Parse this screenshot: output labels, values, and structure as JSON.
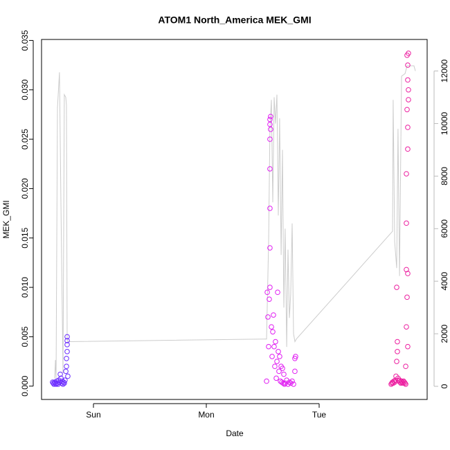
{
  "chart_data": {
    "type": "scatter",
    "title": "ATOM1 North_America MEK_GMI",
    "x_label": "Date",
    "y_label": "MEK_GMI",
    "xlim": [
      0.54,
      3.957
    ],
    "xticks": [
      {
        "value": 1,
        "label": "Sun"
      },
      {
        "value": 2,
        "label": "Mon"
      },
      {
        "value": 3,
        "label": "Tue"
      }
    ],
    "ylim": [
      -0.00135,
      0.0351
    ],
    "yticks": [
      {
        "value": 0,
        "label": "0.000"
      },
      {
        "value": 0.005,
        "label": "0.005"
      },
      {
        "value": 0.01,
        "label": "0.010"
      },
      {
        "value": 0.015,
        "label": "0.015"
      },
      {
        "value": 0.02,
        "label": "0.020"
      },
      {
        "value": 0.025,
        "label": "0.025"
      },
      {
        "value": 0.03,
        "label": "0.030"
      },
      {
        "value": 0.035,
        "label": "0.035"
      }
    ],
    "y2lim": [
      -500,
      13200
    ],
    "y2ticks": [
      0,
      2000,
      4000,
      6000,
      8000,
      10000,
      12000
    ],
    "series": [
      {
        "style": "line",
        "axis": "y2",
        "color": "#cccccc",
        "x": [
          0.656,
          0.663,
          0.669,
          0.681,
          0.699,
          0.712,
          0.73,
          0.742,
          0.755,
          0.761,
          0.767,
          0.773,
          2.534,
          2.552,
          2.564,
          2.577,
          2.589,
          2.601,
          2.613,
          2.626,
          2.638,
          2.65,
          2.663,
          2.675,
          2.687,
          2.699,
          2.712,
          2.724,
          2.736,
          2.748,
          2.761,
          2.773,
          2.785,
          2.798,
          3.65,
          3.656,
          3.669,
          3.687,
          3.699,
          3.712,
          3.73,
          3.761,
          3.779,
          3.804,
          3.84,
          3.853
        ],
        "values": [
          300,
          1000,
          300,
          10600,
          11950,
          7000,
          500,
          11100,
          11000,
          10700,
          1800,
          1700,
          1800,
          5500,
          9800,
          10900,
          7000,
          11000,
          10000,
          11100,
          6500,
          10200,
          5000,
          9000,
          3000,
          6000,
          1500,
          5200,
          2600,
          3500,
          6200,
          2000,
          1700,
          1800,
          5900,
          10900,
          5500,
          4500,
          9800,
          4200,
          11800,
          11900,
          12200,
          12200,
          12200,
          12000
        ]
      },
      {
        "style": "points",
        "color": "#6a2bff",
        "x": [
          0.638,
          0.644,
          0.65,
          0.656,
          0.663,
          0.669,
          0.675,
          0.681,
          0.687,
          0.693,
          0.699,
          0.706,
          0.712,
          0.718,
          0.724,
          0.73,
          0.736,
          0.742,
          0.748,
          0.755,
          0.761,
          0.761,
          0.767,
          0.767,
          0.767,
          0.767,
          0.773
        ],
        "values": [
          0.0004,
          0.0003,
          0.0002,
          0.0004,
          0.0003,
          0.0002,
          0.0005,
          0.0003,
          0.0002,
          0.0006,
          0.0004,
          0.0012,
          0.0008,
          0.0003,
          0.0005,
          0.0002,
          0.0004,
          0.0003,
          0.0006,
          0.0015,
          0.002,
          0.0028,
          0.0035,
          0.0042,
          0.005,
          0.0046,
          0.001
        ]
      },
      {
        "style": "points",
        "color": "#e01cf2",
        "x": [
          2.534,
          2.54,
          2.546,
          2.552,
          2.558,
          2.564,
          2.564,
          2.564,
          2.564,
          2.564,
          2.564,
          2.564,
          2.57,
          2.57,
          2.577,
          2.583,
          2.589,
          2.595,
          2.601,
          2.607,
          2.613,
          2.62,
          2.626,
          2.632,
          2.638,
          2.644,
          2.65,
          2.657,
          2.663,
          2.669,
          2.675,
          2.681,
          2.687,
          2.693,
          2.699,
          2.712,
          2.724,
          2.736,
          2.748,
          2.761,
          2.773,
          2.785,
          2.791,
          2.785
        ],
        "values": [
          0.0005,
          0.0095,
          0.007,
          0.004,
          0.0088,
          0.0265,
          0.027,
          0.025,
          0.022,
          0.018,
          0.014,
          0.01,
          0.0273,
          0.026,
          0.006,
          0.003,
          0.0055,
          0.0072,
          0.004,
          0.002,
          0.0045,
          0.0008,
          0.0025,
          0.0095,
          0.0035,
          0.0015,
          0.003,
          0.0005,
          0.002,
          0.0004,
          0.0018,
          0.0003,
          0.0012,
          0.0002,
          0.0003,
          0.0006,
          0.0002,
          0.0004,
          0.0003,
          0.0005,
          0.0002,
          0.0028,
          0.003,
          0.0015
        ]
      },
      {
        "style": "points",
        "color": "#ec1fa0",
        "x": [
          3.638,
          3.644,
          3.65,
          3.656,
          3.663,
          3.669,
          3.675,
          3.681,
          3.687,
          3.693,
          3.687,
          3.693,
          3.699,
          3.706,
          3.712,
          3.718,
          3.724,
          3.73,
          3.736,
          3.742,
          3.748,
          3.755,
          3.761,
          3.767,
          3.767,
          3.773,
          3.773,
          3.773,
          3.773,
          3.779,
          3.779,
          3.779,
          3.785,
          3.785,
          3.785,
          3.785,
          3.791,
          3.791,
          3.791,
          3.785,
          3.785
        ],
        "values": [
          0.0002,
          0.0003,
          0.0004,
          0.0003,
          0.0005,
          0.0004,
          0.0006,
          0.001,
          0.0025,
          0.0045,
          0.01,
          0.0035,
          0.0008,
          0.0005,
          0.0006,
          0.0004,
          0.0003,
          0.0005,
          0.0004,
          0.0003,
          0.0005,
          0.0004,
          0.0003,
          0.0002,
          0.002,
          0.006,
          0.0118,
          0.0165,
          0.0215,
          0.009,
          0.028,
          0.0335,
          0.031,
          0.0262,
          0.024,
          0.0325,
          0.029,
          0.03,
          0.0337,
          0.0114,
          0.004
        ]
      }
    ]
  }
}
